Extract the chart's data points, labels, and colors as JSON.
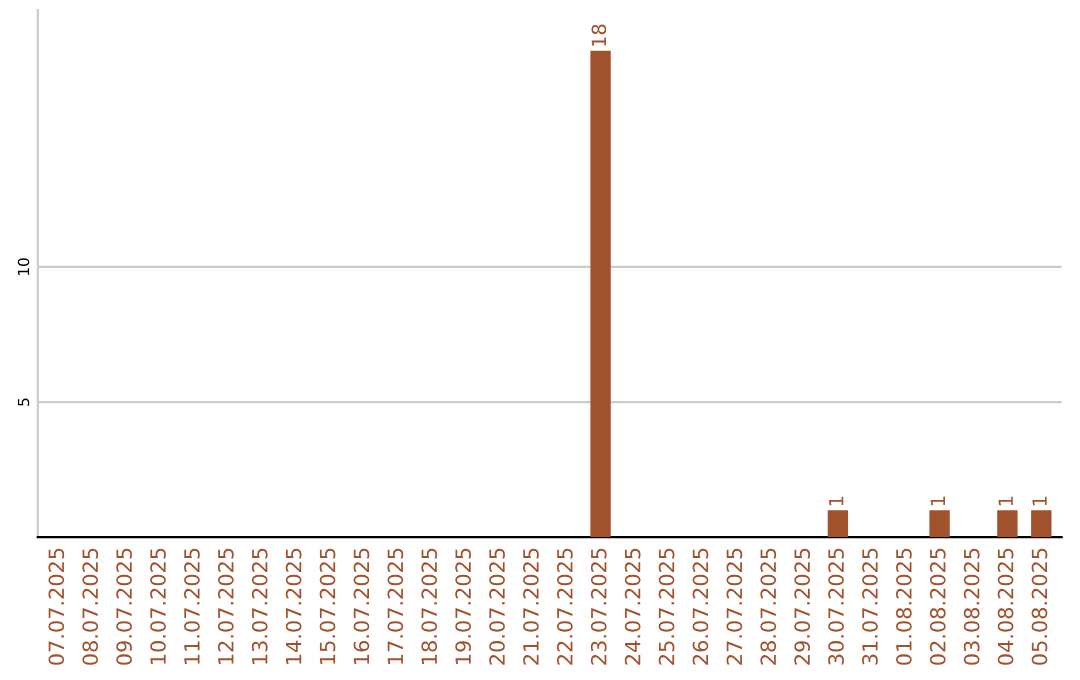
{
  "chart_data": {
    "type": "bar",
    "categories": [
      "07.07.2025",
      "08.07.2025",
      "09.07.2025",
      "10.07.2025",
      "11.07.2025",
      "12.07.2025",
      "13.07.2025",
      "14.07.2025",
      "15.07.2025",
      "16.07.2025",
      "17.07.2025",
      "18.07.2025",
      "19.07.2025",
      "20.07.2025",
      "21.07.2025",
      "22.07.2025",
      "23.07.2025",
      "24.07.2025",
      "25.07.2025",
      "26.07.2025",
      "27.07.2025",
      "28.07.2025",
      "29.07.2025",
      "30.07.2025",
      "31.07.2025",
      "01.08.2025",
      "02.08.2025",
      "03.08.2025",
      "04.08.2025",
      "05.08.2025"
    ],
    "values": [
      0,
      0,
      0,
      0,
      0,
      0,
      0,
      0,
      0,
      0,
      0,
      0,
      0,
      0,
      0,
      0,
      18,
      0,
      0,
      0,
      0,
      0,
      0,
      1,
      0,
      0,
      1,
      0,
      1,
      1
    ],
    "value_labels": [
      null,
      null,
      null,
      null,
      null,
      null,
      null,
      null,
      null,
      null,
      null,
      null,
      null,
      null,
      null,
      null,
      "18",
      null,
      null,
      null,
      null,
      null,
      null,
      "1",
      null,
      null,
      "1",
      null,
      "1",
      "1"
    ],
    "color": "#a0522d",
    "ylim": [
      0,
      19.5
    ],
    "yticks": [
      5,
      10
    ],
    "grid": "y",
    "legend": false
  }
}
